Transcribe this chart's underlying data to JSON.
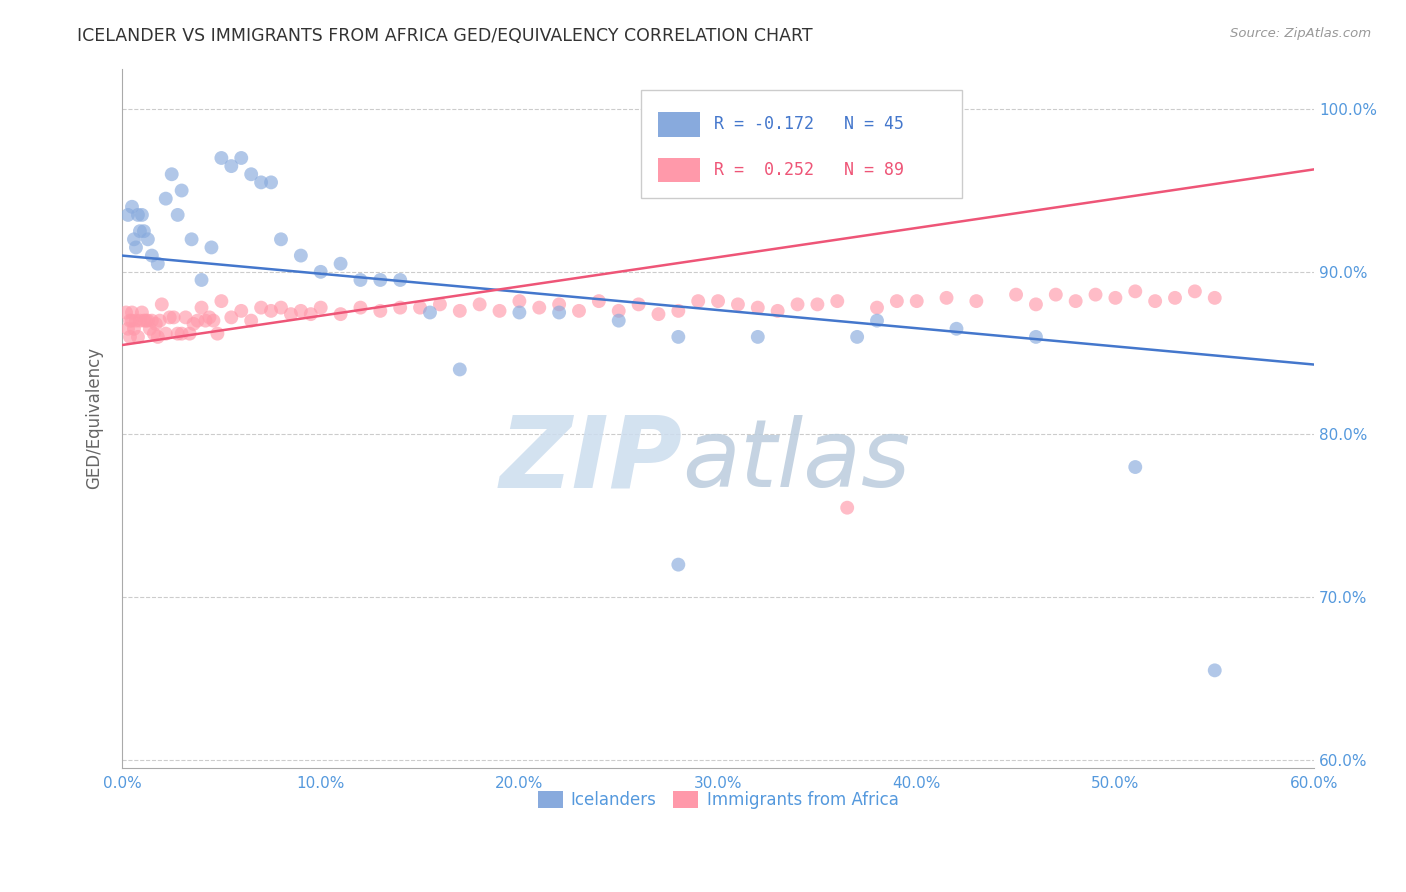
{
  "title": "ICELANDER VS IMMIGRANTS FROM AFRICA GED/EQUIVALENCY CORRELATION CHART",
  "source": "Source: ZipAtlas.com",
  "ylabel": "GED/Equivalency",
  "xlim": [
    0.0,
    0.6
  ],
  "ylim": [
    0.595,
    1.025
  ],
  "blue_color": "#88AADD",
  "pink_color": "#FF99AA",
  "blue_line_color": "#4477CC",
  "pink_line_color": "#EE5577",
  "blue_label": "Icelanders",
  "pink_label": "Immigrants from Africa",
  "legend_blue_r": "R = -0.172",
  "legend_blue_n": "N = 45",
  "legend_pink_r": "R =  0.252",
  "legend_pink_n": "N = 89",
  "blue_line_x0": 0.0,
  "blue_line_y0": 0.91,
  "blue_line_x1": 0.6,
  "blue_line_y1": 0.843,
  "pink_line_x0": 0.0,
  "pink_line_y0": 0.855,
  "pink_line_x1": 0.6,
  "pink_line_y1": 0.963,
  "watermark_zip": "ZIP",
  "watermark_atlas": "atlas",
  "watermark_zip_color": "#CCDDEE",
  "watermark_atlas_color": "#BBCCDD",
  "background_color": "#ffffff",
  "grid_color": "#CCCCCC",
  "title_color": "#333333",
  "tick_color": "#5599DD",
  "marker_size": 100,
  "blue_x": [
    0.003,
    0.005,
    0.006,
    0.007,
    0.008,
    0.009,
    0.01,
    0.011,
    0.013,
    0.015,
    0.018,
    0.022,
    0.025,
    0.028,
    0.03,
    0.035,
    0.04,
    0.045,
    0.05,
    0.055,
    0.06,
    0.065,
    0.07,
    0.075,
    0.08,
    0.09,
    0.1,
    0.11,
    0.12,
    0.13,
    0.14,
    0.155,
    0.17,
    0.2,
    0.22,
    0.25,
    0.28,
    0.32,
    0.37,
    0.42,
    0.46,
    0.51,
    0.55,
    0.28,
    0.38
  ],
  "blue_y": [
    0.935,
    0.94,
    0.92,
    0.915,
    0.935,
    0.925,
    0.935,
    0.925,
    0.92,
    0.91,
    0.905,
    0.945,
    0.96,
    0.935,
    0.95,
    0.92,
    0.895,
    0.915,
    0.97,
    0.965,
    0.97,
    0.96,
    0.955,
    0.955,
    0.92,
    0.91,
    0.9,
    0.905,
    0.895,
    0.895,
    0.895,
    0.875,
    0.84,
    0.875,
    0.875,
    0.87,
    0.86,
    0.86,
    0.86,
    0.865,
    0.86,
    0.78,
    0.655,
    0.72,
    0.87
  ],
  "pink_x": [
    0.002,
    0.003,
    0.004,
    0.004,
    0.005,
    0.005,
    0.006,
    0.007,
    0.008,
    0.009,
    0.01,
    0.011,
    0.012,
    0.013,
    0.014,
    0.015,
    0.016,
    0.017,
    0.018,
    0.019,
    0.02,
    0.022,
    0.024,
    0.026,
    0.028,
    0.03,
    0.032,
    0.034,
    0.036,
    0.038,
    0.04,
    0.042,
    0.044,
    0.046,
    0.048,
    0.05,
    0.055,
    0.06,
    0.065,
    0.07,
    0.075,
    0.08,
    0.085,
    0.09,
    0.095,
    0.1,
    0.11,
    0.12,
    0.13,
    0.14,
    0.15,
    0.16,
    0.17,
    0.18,
    0.19,
    0.2,
    0.21,
    0.22,
    0.23,
    0.24,
    0.25,
    0.26,
    0.27,
    0.28,
    0.29,
    0.3,
    0.31,
    0.32,
    0.33,
    0.34,
    0.35,
    0.36,
    0.38,
    0.39,
    0.4,
    0.415,
    0.43,
    0.45,
    0.46,
    0.47,
    0.48,
    0.49,
    0.5,
    0.51,
    0.52,
    0.53,
    0.54,
    0.55,
    0.365
  ],
  "pink_y": [
    0.875,
    0.865,
    0.87,
    0.86,
    0.87,
    0.875,
    0.865,
    0.87,
    0.86,
    0.87,
    0.875,
    0.87,
    0.87,
    0.87,
    0.865,
    0.87,
    0.862,
    0.868,
    0.86,
    0.87,
    0.88,
    0.862,
    0.872,
    0.872,
    0.862,
    0.862,
    0.872,
    0.862,
    0.868,
    0.87,
    0.878,
    0.87,
    0.872,
    0.87,
    0.862,
    0.882,
    0.872,
    0.876,
    0.87,
    0.878,
    0.876,
    0.878,
    0.874,
    0.876,
    0.874,
    0.878,
    0.874,
    0.878,
    0.876,
    0.878,
    0.878,
    0.88,
    0.876,
    0.88,
    0.876,
    0.882,
    0.878,
    0.88,
    0.876,
    0.882,
    0.876,
    0.88,
    0.874,
    0.876,
    0.882,
    0.882,
    0.88,
    0.878,
    0.876,
    0.88,
    0.88,
    0.882,
    0.878,
    0.882,
    0.882,
    0.884,
    0.882,
    0.886,
    0.88,
    0.886,
    0.882,
    0.886,
    0.884,
    0.888,
    0.882,
    0.884,
    0.888,
    0.884,
    0.755
  ]
}
